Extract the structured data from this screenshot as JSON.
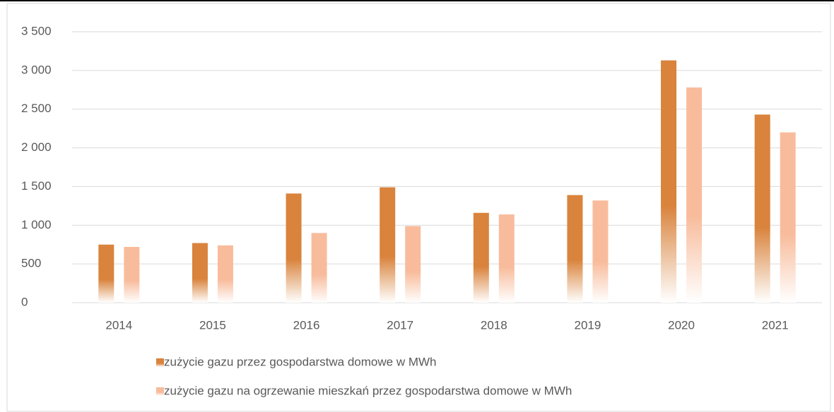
{
  "chart_data": {
    "type": "bar",
    "categories": [
      "2014",
      "2015",
      "2016",
      "2017",
      "2018",
      "2019",
      "2020",
      "2021"
    ],
    "series": [
      {
        "name": "zużycie gazu przez gospodarstwa domowe w MWh",
        "color": "#d9833c",
        "values": [
          750,
          770,
          1410,
          1490,
          1160,
          1390,
          3130,
          2430
        ]
      },
      {
        "name": "zużycie gazu na ogrzewanie mieszkań przez gospodarstwa domowe w MWh",
        "color": "#f8bc9c",
        "values": [
          720,
          740,
          900,
          990,
          1140,
          1320,
          2780,
          2200
        ]
      }
    ],
    "ylim": [
      0,
      3500
    ],
    "yticks": [
      0,
      500,
      {
        "value": 1000,
        "label": "1 000"
      },
      {
        "value": 1500,
        "label": "1 500"
      },
      {
        "value": 2000,
        "label": "2 000"
      },
      {
        "value": 2500,
        "label": "2 500"
      },
      {
        "value": 3000,
        "label": "3 000"
      },
      {
        "value": 3500,
        "label": "3 500"
      }
    ],
    "grid": true,
    "legend": "bottom"
  }
}
